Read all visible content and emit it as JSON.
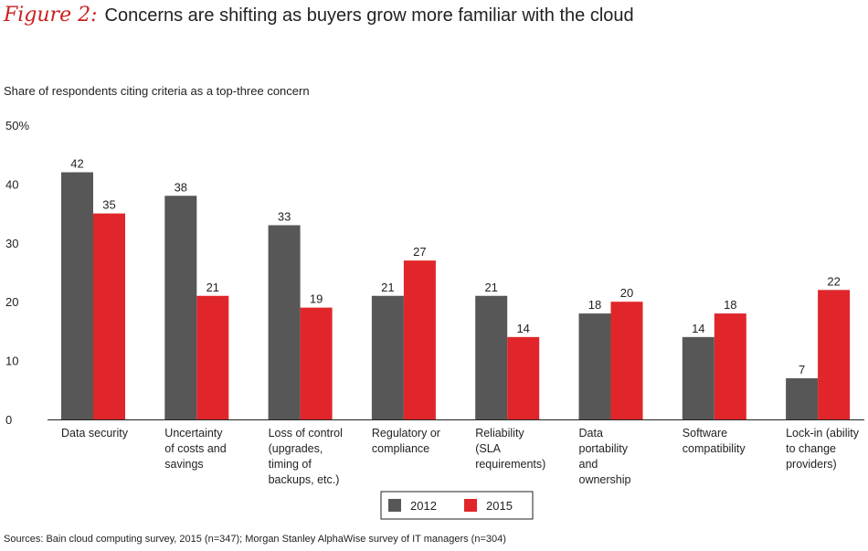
{
  "figure_label": "Figure 2:",
  "chart_data": {
    "type": "bar",
    "title": "Concerns are shifting as buyers grow more familiar with the cloud",
    "ylabel": "Share of respondents citing criteria as a top-three concern",
    "ylim": [
      0,
      50
    ],
    "yticks": [
      "0",
      "10",
      "20",
      "30",
      "40",
      "50%"
    ],
    "categories": [
      [
        "Data security"
      ],
      [
        "Uncertainty",
        "of costs and",
        "savings"
      ],
      [
        "Loss of control",
        "(upgrades,",
        "timing of",
        "backups, etc.)"
      ],
      [
        "Regulatory or",
        "compliance"
      ],
      [
        "Reliability",
        "(SLA",
        "requirements)"
      ],
      [
        "Data",
        "portability",
        "and",
        "ownership"
      ],
      [
        "Software",
        "compatibility"
      ],
      [
        "Lock-in (ability",
        "to change",
        "providers)"
      ]
    ],
    "series": [
      {
        "name": "2012",
        "color": "#575757",
        "values": [
          42,
          38,
          33,
          21,
          21,
          18,
          14,
          7
        ]
      },
      {
        "name": "2015",
        "color": "#e0262a",
        "values": [
          35,
          21,
          19,
          27,
          14,
          20,
          18,
          22
        ]
      }
    ],
    "source": "Sources: Bain cloud computing survey, 2015 (n=347); Morgan Stanley AlphaWise survey of IT managers (n=304)"
  }
}
